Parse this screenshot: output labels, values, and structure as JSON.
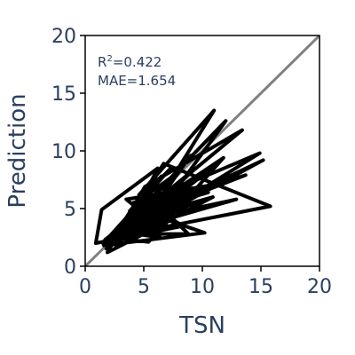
{
  "chart_data": {
    "type": "line",
    "title": "",
    "xlabel": "TSN",
    "ylabel": "Prediction",
    "xlim": [
      0,
      20
    ],
    "ylim": [
      0,
      20
    ],
    "x_ticks": [
      "0",
      "5",
      "10",
      "15",
      "20"
    ],
    "y_ticks": [
      "0",
      "5",
      "10",
      "15",
      "20"
    ],
    "grid": false,
    "legend": "none",
    "colors": {
      "data": "#000000",
      "identity": "#808080",
      "text": "#2a3f5f"
    },
    "annotation": {
      "r2_base": "R",
      "r2_sup": "2",
      "r2_value": "=0.422",
      "mae": "MAE=1.654"
    },
    "identity_line": {
      "x": [
        0,
        20
      ],
      "y": [
        0,
        20
      ]
    },
    "series": [
      {
        "x": [
          1.5,
          4.2,
          2.8,
          6.5,
          3.1,
          8.0,
          4.6,
          11.0,
          5.2,
          2.0,
          7.3,
          3.8,
          9.5,
          4.9,
          2.4,
          6.1,
          10.6,
          3.5,
          5.8,
          12.0,
          4.0,
          7.8,
          2.7,
          15.8,
          6.7,
          3.3,
          5.5,
          9.0,
          2.2,
          14.9,
          4.4,
          6.9,
          3.0,
          8.8,
          5.0,
          1.8,
          7.0,
          4.7,
          12.9,
          3.6,
          6.0,
          2.5,
          9.9,
          5.3,
          3.9,
          10.5,
          4.3,
          6.4,
          2.9,
          13.4,
          5.1,
          1.9,
          7.5,
          4.0,
          11.4,
          3.2,
          6.2,
          1.4,
          0.9,
          8.4,
          4.5,
          2.6,
          10.9,
          5.6,
          3.4,
          7.1,
          2.1,
          15.2,
          4.8,
          6.6,
          3.7,
          9.2,
          2.3,
          5.9,
          1.6,
          8.2,
          4.1,
          6.8,
          3.0,
          11.8,
          5.4,
          2.8,
          7.6,
          4.2,
          13.7,
          3.5,
          6.3,
          2.0,
          9.6,
          5.7,
          3.1,
          7.9,
          4.6,
          2.4,
          10.2,
          5.0,
          3.8,
          6.5,
          1.7,
          8.6
        ],
        "y": [
          2.0,
          4.5,
          3.2,
          7.8,
          3.0,
          5.1,
          6.2,
          13.5,
          4.0,
          2.5,
          8.5,
          4.8,
          6.3,
          3.5,
          2.0,
          5.5,
          7.0,
          5.8,
          3.9,
          12.6,
          4.2,
          6.0,
          2.6,
          5.2,
          8.9,
          3.4,
          4.6,
          9.6,
          1.8,
          9.8,
          5.3,
          3.7,
          2.8,
          2.8,
          6.6,
          1.5,
          5.0,
          4.0,
          5.8,
          3.1,
          7.1,
          2.2,
          8.0,
          3.3,
          4.4,
          6.4,
          5.0,
          2.5,
          3.0,
          11.8,
          6.9,
          1.2,
          4.1,
          3.6,
          9.0,
          2.4,
          8.5,
          4.9,
          2.0,
          3.5,
          5.6,
          1.6,
          6.0,
          4.5,
          3.8,
          7.4,
          2.0,
          9.2,
          4.2,
          5.9,
          2.9,
          8.3,
          2.6,
          3.2,
          1.8,
          6.8,
          5.5,
          4.1,
          3.4,
          9.4,
          2.1,
          2.4,
          6.6,
          4.8,
          7.9,
          3.9,
          5.2,
          2.2,
          5.6,
          4.3,
          3.6,
          8.1,
          5.7,
          1.9,
          2.9,
          4.7,
          4.4,
          6.2,
          2.3,
          7.2
        ]
      }
    ]
  }
}
